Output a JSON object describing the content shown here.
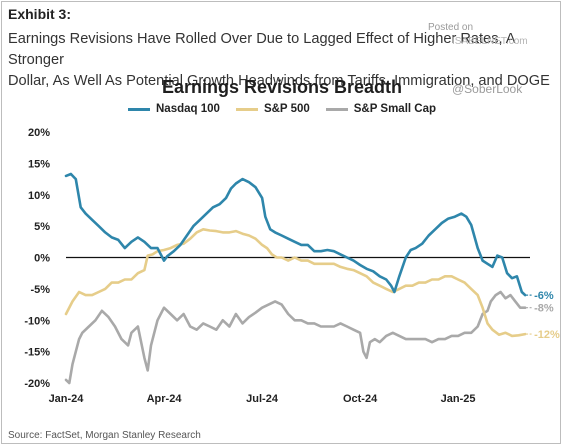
{
  "exhibit": "Exhibit 3:",
  "headline_line1": "Earnings Revisions Have Rolled Over Due to Lagged Effect of Higher Rates, A Stronger",
  "headline_line2": "Dollar, As Well As Potential Growth Headwinds from Tariffs, Immigration, and DOGE",
  "watermarks": [
    "Posted on",
    "ISABELNET.com",
    "@SoberLook"
  ],
  "source": "Source: FactSet, Morgan Stanley Research",
  "colors": {
    "nasdaq": "#2e86ab",
    "sp500": "#e6cd8a",
    "smallcap": "#a9a9a9",
    "zero": "#111111"
  },
  "chart_data": {
    "type": "line",
    "title": "Earnings Revisions Breadth",
    "xlabel": "",
    "ylabel": "",
    "ylim": [
      -20,
      20
    ],
    "yticks": [
      -20,
      -15,
      -10,
      -5,
      0,
      5,
      10,
      15,
      20
    ],
    "ytick_labels": [
      "-20%",
      "-15%",
      "-10%",
      "-5%",
      "0%",
      "5%",
      "10%",
      "15%",
      "20%"
    ],
    "xticks": [
      0,
      3,
      6,
      9,
      12
    ],
    "xtick_labels": [
      "Jan-24",
      "Apr-24",
      "Jul-24",
      "Oct-24",
      "Jan-25"
    ],
    "x_unit": "months since Jan-24",
    "grid": false,
    "zero_line": true,
    "legend_position": "top",
    "series": [
      {
        "name": "Nasdaq 100",
        "end_label": "-6%",
        "points": [
          [
            0.0,
            13
          ],
          [
            0.15,
            13.3
          ],
          [
            0.3,
            12.5
          ],
          [
            0.45,
            8
          ],
          [
            0.6,
            7
          ],
          [
            0.8,
            6
          ],
          [
            1.0,
            5
          ],
          [
            1.2,
            4
          ],
          [
            1.4,
            3.2
          ],
          [
            1.6,
            2.8
          ],
          [
            1.8,
            1.5
          ],
          [
            2.0,
            2.5
          ],
          [
            2.2,
            3.2
          ],
          [
            2.4,
            2.5
          ],
          [
            2.6,
            1.5
          ],
          [
            2.8,
            1.5
          ],
          [
            3.0,
            -0.5
          ],
          [
            3.1,
            0.2
          ],
          [
            3.3,
            1
          ],
          [
            3.5,
            2
          ],
          [
            3.7,
            3.5
          ],
          [
            3.9,
            5
          ],
          [
            4.1,
            6
          ],
          [
            4.3,
            7
          ],
          [
            4.5,
            8
          ],
          [
            4.7,
            8.5
          ],
          [
            4.9,
            9.5
          ],
          [
            5.05,
            11
          ],
          [
            5.2,
            11.8
          ],
          [
            5.4,
            12.5
          ],
          [
            5.6,
            12
          ],
          [
            5.8,
            11.2
          ],
          [
            6.0,
            9.5
          ],
          [
            6.1,
            6.5
          ],
          [
            6.25,
            4.5
          ],
          [
            6.4,
            4
          ],
          [
            6.6,
            3.5
          ],
          [
            6.8,
            3
          ],
          [
            7.0,
            2.5
          ],
          [
            7.2,
            2
          ],
          [
            7.4,
            2
          ],
          [
            7.6,
            1
          ],
          [
            7.8,
            1
          ],
          [
            8.0,
            1.2
          ],
          [
            8.2,
            1
          ],
          [
            8.4,
            0.5
          ],
          [
            8.6,
            0
          ],
          [
            8.8,
            -0.5
          ],
          [
            9.0,
            -1.2
          ],
          [
            9.2,
            -1.8
          ],
          [
            9.4,
            -2.2
          ],
          [
            9.6,
            -3
          ],
          [
            9.8,
            -3.5
          ],
          [
            9.95,
            -4.5
          ],
          [
            10.05,
            -5.5
          ],
          [
            10.2,
            -3
          ],
          [
            10.4,
            0
          ],
          [
            10.55,
            1.2
          ],
          [
            10.7,
            1.5
          ],
          [
            10.9,
            2.2
          ],
          [
            11.1,
            3.5
          ],
          [
            11.3,
            4.5
          ],
          [
            11.5,
            5.5
          ],
          [
            11.7,
            6.2
          ],
          [
            11.9,
            6.5
          ],
          [
            12.1,
            7
          ],
          [
            12.25,
            6.5
          ],
          [
            12.4,
            5.2
          ],
          [
            12.6,
            1.5
          ],
          [
            12.75,
            -0.5
          ],
          [
            12.9,
            -1
          ],
          [
            13.05,
            -1.5
          ],
          [
            13.2,
            0.3
          ],
          [
            13.35,
            0
          ],
          [
            13.5,
            -2.5
          ],
          [
            13.65,
            -3.3
          ],
          [
            13.8,
            -3
          ],
          [
            13.95,
            -5.5
          ],
          [
            14.05,
            -6
          ]
        ]
      },
      {
        "name": "S&P 500",
        "end_label": "-12%",
        "points": [
          [
            0.0,
            -9
          ],
          [
            0.2,
            -7
          ],
          [
            0.4,
            -5.5
          ],
          [
            0.6,
            -6
          ],
          [
            0.8,
            -6
          ],
          [
            1.0,
            -5.5
          ],
          [
            1.2,
            -5
          ],
          [
            1.4,
            -4
          ],
          [
            1.6,
            -4
          ],
          [
            1.8,
            -3.5
          ],
          [
            2.0,
            -3.5
          ],
          [
            2.2,
            -2.5
          ],
          [
            2.4,
            -2
          ],
          [
            2.5,
            0.3
          ],
          [
            2.65,
            0.5
          ],
          [
            2.8,
            1
          ],
          [
            3.0,
            1.2
          ],
          [
            3.2,
            1.5
          ],
          [
            3.4,
            2
          ],
          [
            3.6,
            2.2
          ],
          [
            3.8,
            3
          ],
          [
            4.0,
            4
          ],
          [
            4.2,
            4.5
          ],
          [
            4.4,
            4.3
          ],
          [
            4.6,
            4.2
          ],
          [
            4.8,
            4
          ],
          [
            5.0,
            4
          ],
          [
            5.2,
            4.2
          ],
          [
            5.4,
            3.8
          ],
          [
            5.6,
            3.5
          ],
          [
            5.8,
            3
          ],
          [
            6.0,
            2
          ],
          [
            6.15,
            1.5
          ],
          [
            6.3,
            0.5
          ],
          [
            6.45,
            0
          ],
          [
            6.6,
            0
          ],
          [
            6.8,
            -0.5
          ],
          [
            7.0,
            0
          ],
          [
            7.2,
            -0.5
          ],
          [
            7.4,
            -0.5
          ],
          [
            7.6,
            -1
          ],
          [
            7.8,
            -1
          ],
          [
            8.0,
            -1
          ],
          [
            8.2,
            -1
          ],
          [
            8.4,
            -1.5
          ],
          [
            8.6,
            -1.8
          ],
          [
            8.8,
            -2
          ],
          [
            9.0,
            -2.5
          ],
          [
            9.2,
            -3
          ],
          [
            9.4,
            -4
          ],
          [
            9.6,
            -4.5
          ],
          [
            9.8,
            -5
          ],
          [
            10.0,
            -5.5
          ],
          [
            10.2,
            -5
          ],
          [
            10.4,
            -4.5
          ],
          [
            10.6,
            -4.5
          ],
          [
            10.8,
            -4
          ],
          [
            11.0,
            -4
          ],
          [
            11.2,
            -3.5
          ],
          [
            11.4,
            -3.5
          ],
          [
            11.6,
            -3
          ],
          [
            11.8,
            -3
          ],
          [
            12.0,
            -3.5
          ],
          [
            12.2,
            -4
          ],
          [
            12.4,
            -5
          ],
          [
            12.6,
            -6
          ],
          [
            12.75,
            -8
          ],
          [
            12.9,
            -10.5
          ],
          [
            13.05,
            -11.5
          ],
          [
            13.25,
            -12.3
          ],
          [
            13.45,
            -12
          ],
          [
            13.65,
            -12.5
          ],
          [
            13.85,
            -12.4
          ],
          [
            14.05,
            -12.2
          ]
        ]
      },
      {
        "name": "S&P Small Cap",
        "end_label": "-8%",
        "points": [
          [
            0.0,
            -19.5
          ],
          [
            0.1,
            -20
          ],
          [
            0.2,
            -17
          ],
          [
            0.3,
            -15
          ],
          [
            0.4,
            -13
          ],
          [
            0.5,
            -12
          ],
          [
            0.7,
            -11
          ],
          [
            0.9,
            -10
          ],
          [
            1.1,
            -8.5
          ],
          [
            1.3,
            -9.5
          ],
          [
            1.5,
            -11
          ],
          [
            1.7,
            -13
          ],
          [
            1.9,
            -14
          ],
          [
            2.0,
            -12
          ],
          [
            2.2,
            -11
          ],
          [
            2.4,
            -16
          ],
          [
            2.5,
            -18
          ],
          [
            2.6,
            -14
          ],
          [
            2.8,
            -10
          ],
          [
            3.0,
            -8
          ],
          [
            3.2,
            -9
          ],
          [
            3.4,
            -10
          ],
          [
            3.6,
            -9
          ],
          [
            3.8,
            -11
          ],
          [
            4.0,
            -11.5
          ],
          [
            4.2,
            -10.5
          ],
          [
            4.4,
            -11
          ],
          [
            4.6,
            -11.5
          ],
          [
            4.8,
            -10
          ],
          [
            5.0,
            -11
          ],
          [
            5.2,
            -9
          ],
          [
            5.4,
            -10.5
          ],
          [
            5.6,
            -9.5
          ],
          [
            5.8,
            -8.8
          ],
          [
            6.0,
            -8
          ],
          [
            6.2,
            -7.5
          ],
          [
            6.4,
            -7
          ],
          [
            6.6,
            -7.5
          ],
          [
            6.8,
            -9
          ],
          [
            7.0,
            -10
          ],
          [
            7.2,
            -10
          ],
          [
            7.4,
            -10.5
          ],
          [
            7.6,
            -10.5
          ],
          [
            7.8,
            -11
          ],
          [
            8.0,
            -11
          ],
          [
            8.2,
            -11
          ],
          [
            8.4,
            -10.5
          ],
          [
            8.6,
            -11
          ],
          [
            8.8,
            -11.5
          ],
          [
            9.0,
            -12
          ],
          [
            9.1,
            -15
          ],
          [
            9.2,
            -16
          ],
          [
            9.3,
            -13.5
          ],
          [
            9.45,
            -13
          ],
          [
            9.6,
            -13.5
          ],
          [
            9.8,
            -12.5
          ],
          [
            10.0,
            -12
          ],
          [
            10.2,
            -12.5
          ],
          [
            10.4,
            -13
          ],
          [
            10.6,
            -13
          ],
          [
            10.8,
            -13
          ],
          [
            11.0,
            -13
          ],
          [
            11.2,
            -13.5
          ],
          [
            11.4,
            -13
          ],
          [
            11.6,
            -13
          ],
          [
            11.8,
            -12.5
          ],
          [
            12.0,
            -12.5
          ],
          [
            12.2,
            -12
          ],
          [
            12.4,
            -12
          ],
          [
            12.6,
            -11
          ],
          [
            12.75,
            -9
          ],
          [
            12.9,
            -8.5
          ],
          [
            13.0,
            -7
          ],
          [
            13.15,
            -6
          ],
          [
            13.3,
            -5.5
          ],
          [
            13.45,
            -6.5
          ],
          [
            13.6,
            -6
          ],
          [
            13.75,
            -7
          ],
          [
            13.9,
            -8
          ],
          [
            14.05,
            -8
          ]
        ]
      }
    ]
  }
}
